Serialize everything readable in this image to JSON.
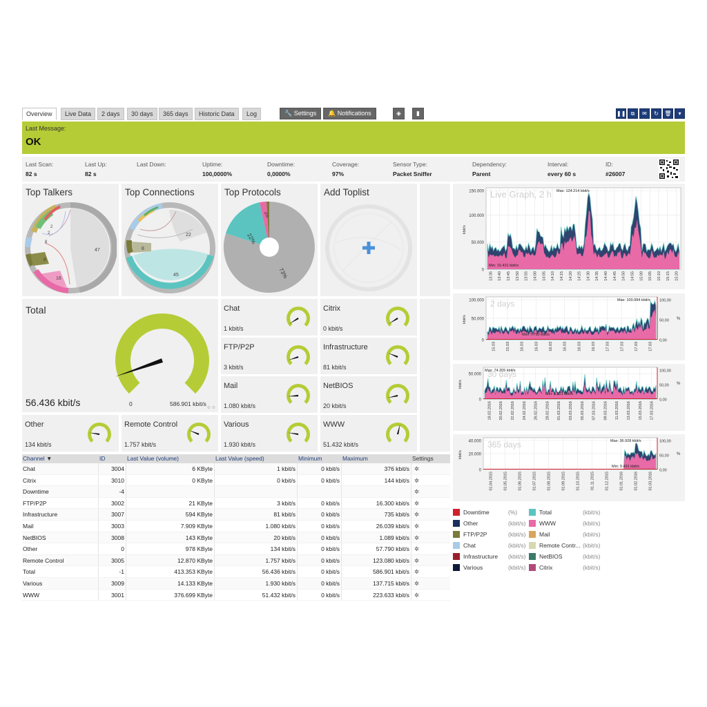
{
  "tabs": [
    {
      "label": "Overview",
      "active": true
    },
    {
      "label": "Live Data"
    },
    {
      "label": "2 days"
    },
    {
      "label": "30 days"
    },
    {
      "label": "365 days"
    },
    {
      "label": "Historic Data"
    },
    {
      "label": "Log"
    }
  ],
  "toolbar": {
    "settings_label": "Settings",
    "notifications_label": "Notifications"
  },
  "message": {
    "label": "Last Message:",
    "value": "OK",
    "color": "#b5cc36"
  },
  "info": [
    {
      "key": "Last Scan:",
      "value": "82 s"
    },
    {
      "key": "Last Up:",
      "value": "82 s"
    },
    {
      "key": "Last Down:",
      "value": ""
    },
    {
      "key": "Uptime:",
      "value": "100,0000%"
    },
    {
      "key": "Downtime:",
      "value": "0,0000%"
    },
    {
      "key": "Coverage:",
      "value": "97%"
    },
    {
      "key": "Sensor Type:",
      "value": "Packet Sniffer"
    },
    {
      "key": "Dependency:",
      "value": "Parent"
    },
    {
      "key": "Interval:",
      "value": "every 60 s"
    },
    {
      "key": "ID:",
      "value": "#26007"
    }
  ],
  "toplists": {
    "top_talkers": {
      "title": "Top Talkers",
      "labels": [
        "47",
        "16",
        "8",
        "8",
        "2",
        "2"
      ]
    },
    "top_connections": {
      "title": "Top Connections",
      "labels": [
        "22",
        "45",
        "8"
      ]
    },
    "top_protocols": {
      "title": "Top Protocols",
      "labels": [
        "22%",
        "73%",
        "4%"
      ]
    },
    "add_toplist": {
      "title": "Add Toplist"
    }
  },
  "total": {
    "label": "Total",
    "value": "56.436 kbit/s",
    "min": "0",
    "max": "586.901 kbit/s",
    "fraction": 0.096
  },
  "gauges": [
    {
      "label": "Chat",
      "value": "1 kbit/s"
    },
    {
      "label": "Citrix",
      "value": "0 kbit/s"
    },
    {
      "label": "FTP/P2P",
      "value": "3 kbit/s"
    },
    {
      "label": "Infrastructure",
      "value": "81 kbit/s"
    },
    {
      "label": "Mail",
      "value": "1.080 kbit/s"
    },
    {
      "label": "NetBIOS",
      "value": "20 kbit/s"
    },
    {
      "label": "Other",
      "value": "134 kbit/s"
    },
    {
      "label": "Remote Control",
      "value": "1.757 kbit/s"
    },
    {
      "label": "Various",
      "value": "1.930 kbit/s"
    },
    {
      "label": "WWW",
      "value": "51.432 kbit/s"
    }
  ],
  "table": {
    "headers": {
      "channel": "Channel",
      "id": "ID",
      "volume": "Last Value (volume)",
      "speed": "Last Value (speed)",
      "minimum": "Minimum",
      "maximum": "Maximum",
      "settings": "Settings"
    },
    "rows": [
      {
        "channel": "Chat",
        "id": "3004",
        "volume": "6 KByte",
        "speed": "1 kbit/s",
        "minimum": "0 kbit/s",
        "maximum": "376 kbit/s"
      },
      {
        "channel": "Citrix",
        "id": "3010",
        "volume": "0 KByte",
        "speed": "0 kbit/s",
        "minimum": "0 kbit/s",
        "maximum": "144 kbit/s"
      },
      {
        "channel": "Downtime",
        "id": "-4",
        "volume": "",
        "speed": "",
        "minimum": "",
        "maximum": ""
      },
      {
        "channel": "FTP/P2P",
        "id": "3002",
        "volume": "21 KByte",
        "speed": "3 kbit/s",
        "minimum": "0 kbit/s",
        "maximum": "16.300 kbit/s"
      },
      {
        "channel": "Infrastructure",
        "id": "3007",
        "volume": "594 KByte",
        "speed": "81 kbit/s",
        "minimum": "0 kbit/s",
        "maximum": "735 kbit/s"
      },
      {
        "channel": "Mail",
        "id": "3003",
        "volume": "7.909 KByte",
        "speed": "1.080 kbit/s",
        "minimum": "0 kbit/s",
        "maximum": "26.039 kbit/s"
      },
      {
        "channel": "NetBIOS",
        "id": "3008",
        "volume": "143 KByte",
        "speed": "20 kbit/s",
        "minimum": "0 kbit/s",
        "maximum": "1.089 kbit/s"
      },
      {
        "channel": "Other",
        "id": "0",
        "volume": "978 KByte",
        "speed": "134 kbit/s",
        "minimum": "0 kbit/s",
        "maximum": "57.790 kbit/s"
      },
      {
        "channel": "Remote Control",
        "id": "3005",
        "volume": "12.870 KByte",
        "speed": "1.757 kbit/s",
        "minimum": "0 kbit/s",
        "maximum": "123.080 kbit/s"
      },
      {
        "channel": "Total",
        "id": "-1",
        "volume": "413.353 KByte",
        "speed": "56.436 kbit/s",
        "minimum": "0 kbit/s",
        "maximum": "586.901 kbit/s"
      },
      {
        "channel": "Various",
        "id": "3009",
        "volume": "14.133 KByte",
        "speed": "1.930 kbit/s",
        "minimum": "0 kbit/s",
        "maximum": "137.715 kbit/s"
      },
      {
        "channel": "WWW",
        "id": "3001",
        "volume": "376.699 KByte",
        "speed": "51.432 kbit/s",
        "minimum": "0 kbit/s",
        "maximum": "223.633 kbit/s"
      }
    ]
  },
  "graphs": [
    {
      "title": "Live Graph, 2 h",
      "ylabel": "kbit/s",
      "y_ticks": [
        "150.000",
        "100.000",
        "50.000",
        "0"
      ],
      "x_ticks": [
        "13:35",
        "13:40",
        "13:45",
        "13:50",
        "13:55",
        "14:00",
        "14:05",
        "14:10",
        "14:15",
        "14:20",
        "14:25",
        "14:30",
        "14:35",
        "14:40",
        "14:45",
        "14:50",
        "14:55",
        "15:00",
        "15:05",
        "15:10",
        "15:15",
        "15:20"
      ],
      "max_label": "Max: 124.214 kbit/s",
      "min_label": "Min: 15.431 kbit/s",
      "ymax": 150000
    },
    {
      "title": "2 days",
      "ylabel": "kbit/s",
      "y_ticks": [
        "100.000",
        "50.000",
        "0"
      ],
      "y2_ticks": [
        "100,00",
        "50,00",
        "0,00"
      ],
      "y2label": "%",
      "x_ticks": [
        "15.03",
        "15.03",
        "16.03",
        "16.03",
        "16.03",
        "16.03",
        "16.03",
        "16.03",
        "17.03",
        "17.03",
        "17.03",
        "17.03"
      ],
      "max_label": "Max: 100.994 kbit/s",
      "min_label": "Min: 7.790 kbit/s",
      "ymax": 110000
    },
    {
      "title": "30 days",
      "ylabel": "kbit/s",
      "y_ticks": [
        "50.000",
        "0"
      ],
      "y2_ticks": [
        "100,00",
        "50,00",
        "0,00"
      ],
      "y2label": "%",
      "x_ticks": [
        "18.02.2016",
        "20.02.2016",
        "22.02.2016",
        "24.02.2016",
        "26.02.2016",
        "28.02.2016",
        "01.03.2016",
        "03.03.2016",
        "05.03.2016",
        "07.03.2016",
        "09.03.2016",
        "11.03.2016",
        "13.03.2016",
        "15.03.2016",
        "17.03.2016"
      ],
      "max_label": "Max: 74.205 kbit/s",
      "min_label": "Min: 8.521 kbit/s",
      "ymax": 80000
    },
    {
      "title": "365 days",
      "ylabel": "kbit/s",
      "y_ticks": [
        "40.000",
        "20.000",
        "0"
      ],
      "y2_ticks": [
        "100,00",
        "50,00",
        "0,00"
      ],
      "y2label": "%",
      "x_ticks": [
        "01.04.2015",
        "01.05.2015",
        "01.06.2015",
        "01.07.2015",
        "01.08.2015",
        "01.09.2015",
        "01.10.2015",
        "01.11.2015",
        "01.12.2015",
        "01.01.2016",
        "01.02.2016",
        "01.03.2016"
      ],
      "max_label": "Max: 36.928 kbit/s",
      "min_label": "Min: 9.491 kbit/s",
      "ymax": 40000
    }
  ],
  "legend": [
    {
      "name": "Downtime",
      "unit": "(%)",
      "color": "#d0202a"
    },
    {
      "name": "Total",
      "unit": "(kbit/s)",
      "color": "#5bc4c0"
    },
    {
      "name": "Other",
      "unit": "(kbit/s)",
      "color": "#1a2f5e"
    },
    {
      "name": "WWW",
      "unit": "(kbit/s)",
      "color": "#e86aa6"
    },
    {
      "name": "FTP/P2P",
      "unit": "(kbit/s)",
      "color": "#7a7a3a"
    },
    {
      "name": "Mail",
      "unit": "(kbit/s)",
      "color": "#d9a45b"
    },
    {
      "name": "Chat",
      "unit": "(kbit/s)",
      "color": "#a8cce8"
    },
    {
      "name": "Remote Contr...",
      "unit": "(kbit/s)",
      "color": "#d8d8b0"
    },
    {
      "name": "Infrastructure",
      "unit": "(kbit/s)",
      "color": "#9a1f2a"
    },
    {
      "name": "NetBIOS",
      "unit": "(kbit/s)",
      "color": "#3a7a6a"
    },
    {
      "name": "Various",
      "unit": "(kbit/s)",
      "color": "#0e1a38"
    },
    {
      "name": "Citrix",
      "unit": "(kbit/s)",
      "color": "#b04a7a"
    }
  ],
  "colors": {
    "accent": "#b5cc36",
    "nav": "#1f3d7a",
    "www": "#e86aa6",
    "total": "#5bc4c0",
    "other": "#1a2f5e"
  }
}
